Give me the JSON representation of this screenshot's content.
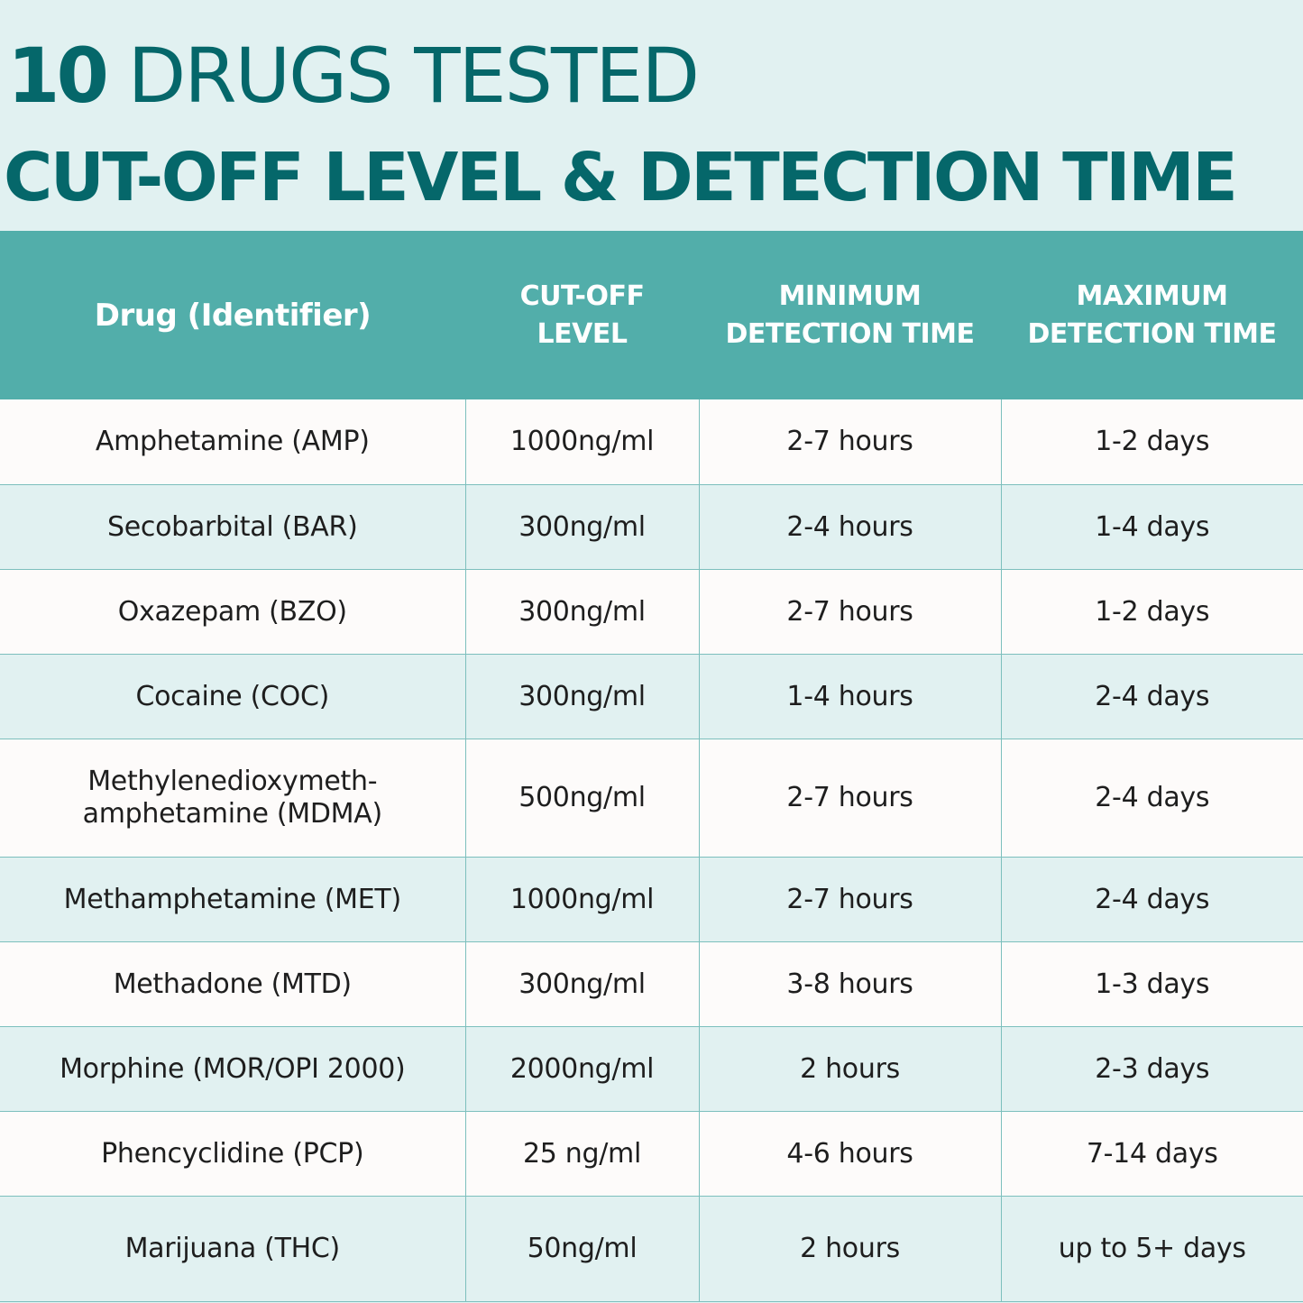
{
  "title": {
    "number": "10",
    "line1_rest": " DRUGS TESTED",
    "line2": "CUT-OFF LEVEL & DETECTION TIME"
  },
  "table": {
    "headers": {
      "drug": "Drug (Identifier)",
      "cutoff_line1": "CUT-OFF",
      "cutoff_line2": "LEVEL",
      "min_line1": "MINIMUM",
      "min_line2": "DETECTION TIME",
      "max_line1": "MAXIMUM",
      "max_line2": "DETECTION TIME"
    },
    "rows": [
      {
        "drug": "Amphetamine (AMP)",
        "cutoff": "1000ng/ml",
        "min": "2-7 hours",
        "max": "1-2 days"
      },
      {
        "drug": "Secobarbital (BAR)",
        "cutoff": "300ng/ml",
        "min": "2-4 hours",
        "max": "1-4 days"
      },
      {
        "drug": "Oxazepam (BZO)",
        "cutoff": "300ng/ml",
        "min": "2-7 hours",
        "max": "1-2 days"
      },
      {
        "drug": "Cocaine (COC)",
        "cutoff": "300ng/ml",
        "min": "1-4 hours",
        "max": "2-4 days"
      },
      {
        "drug_line1": "Methylenedioxymeth-",
        "drug_line2": "amphetamine (MDMA)",
        "cutoff": "500ng/ml",
        "min": "2-7 hours",
        "max": "2-4 days"
      },
      {
        "drug": "Methamphetamine (MET)",
        "cutoff": "1000ng/ml",
        "min": "2-7 hours",
        "max": "2-4 days"
      },
      {
        "drug": "Methadone (MTD)",
        "cutoff": "300ng/ml",
        "min": "3-8 hours",
        "max": "1-3 days"
      },
      {
        "drug": "Morphine (MOR/OPI 2000)",
        "cutoff": "2000ng/ml",
        "min": "2 hours",
        "max": "2-3 days"
      },
      {
        "drug": "Phencyclidine (PCP)",
        "cutoff": "25 ng/ml",
        "min": "4-6 hours",
        "max": "7-14 days"
      },
      {
        "drug": "Marijuana (THC)",
        "cutoff": "50ng/ml",
        "min": "2 hours",
        "max": "up to 5+ days"
      }
    ]
  },
  "colors": {
    "title_teal": "#05676a",
    "header_teal": "#52aeaa",
    "background_light": "#e1f1f1",
    "row_white": "#fdfbfa"
  }
}
